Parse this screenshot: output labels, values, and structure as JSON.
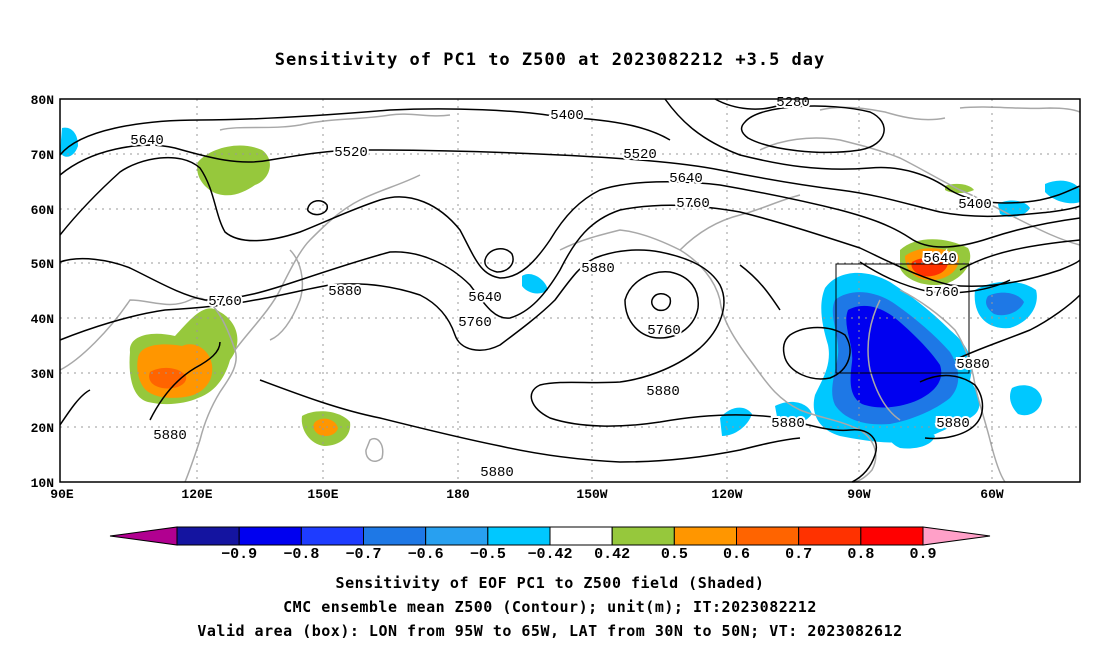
{
  "title": "Sensitivity of PC1 to Z500 at 2023082212 +3.5 day",
  "lat_labels": [
    "80N",
    "70N",
    "60N",
    "50N",
    "40N",
    "30N",
    "20N",
    "10N"
  ],
  "lon_labels": [
    "90E",
    "120E",
    "150E",
    "180",
    "150W",
    "120W",
    "90W",
    "60W"
  ],
  "contour_labels": [
    {
      "text": "5280",
      "color": "#000000"
    },
    {
      "text": "5400",
      "color": "#000000"
    },
    {
      "text": "5640",
      "color": "#000000"
    },
    {
      "text": "5520",
      "color": "#000000"
    },
    {
      "text": "5520",
      "color": "#000000"
    },
    {
      "text": "5640",
      "color": "#000000"
    },
    {
      "text": "5760",
      "color": "#000000"
    },
    {
      "text": "5400",
      "color": "#000000"
    },
    {
      "text": "5880",
      "color": "#000000"
    },
    {
      "text": "5640",
      "color": "#000000"
    },
    {
      "text": "5760",
      "color": "#000000"
    },
    {
      "text": "5640",
      "color": "#000000"
    },
    {
      "text": "5760",
      "color": "#000000"
    },
    {
      "text": "5760",
      "color": "#000000"
    },
    {
      "text": "5880",
      "color": "#000000"
    },
    {
      "text": "5760",
      "color": "#000000"
    },
    {
      "text": "5880",
      "color": "#000000"
    },
    {
      "text": "5880",
      "color": "#000000"
    },
    {
      "text": "5880",
      "color": "#000000"
    },
    {
      "text": "5880",
      "color": "#000000"
    },
    {
      "text": "5880",
      "color": "#000000"
    },
    {
      "text": "5880",
      "color": "#000000"
    }
  ],
  "colorbar": {
    "colors": [
      "#b10090",
      "#1414a0",
      "#0000f0",
      "#1e3cff",
      "#1e78e6",
      "#28a0f0",
      "#00c8ff",
      "#ffffff",
      "#96c83c",
      "#ff9600",
      "#ff6400",
      "#ff3200",
      "#ff0000",
      "#ffa0c8"
    ],
    "labels": [
      "−0.9",
      "−0.8",
      "−0.7",
      "−0.6",
      "−0.5",
      "−0.42",
      "0.42",
      "0.5",
      "0.6",
      "0.7",
      "0.8",
      "0.9"
    ]
  },
  "caption": {
    "line1": "Sensitivity of EOF PC1 to Z500 field (Shaded)",
    "line2": "CMC ensemble mean Z500 (Contour); unit(m); IT:2023082212",
    "line3": "Valid area (box): LON from 95W to 65W, LAT from 30N to 50N; VT: 2023082612"
  },
  "valid_box": {
    "lon_min": "95W",
    "lon_max": "65W",
    "lat_min": "30N",
    "lat_max": "50N"
  }
}
